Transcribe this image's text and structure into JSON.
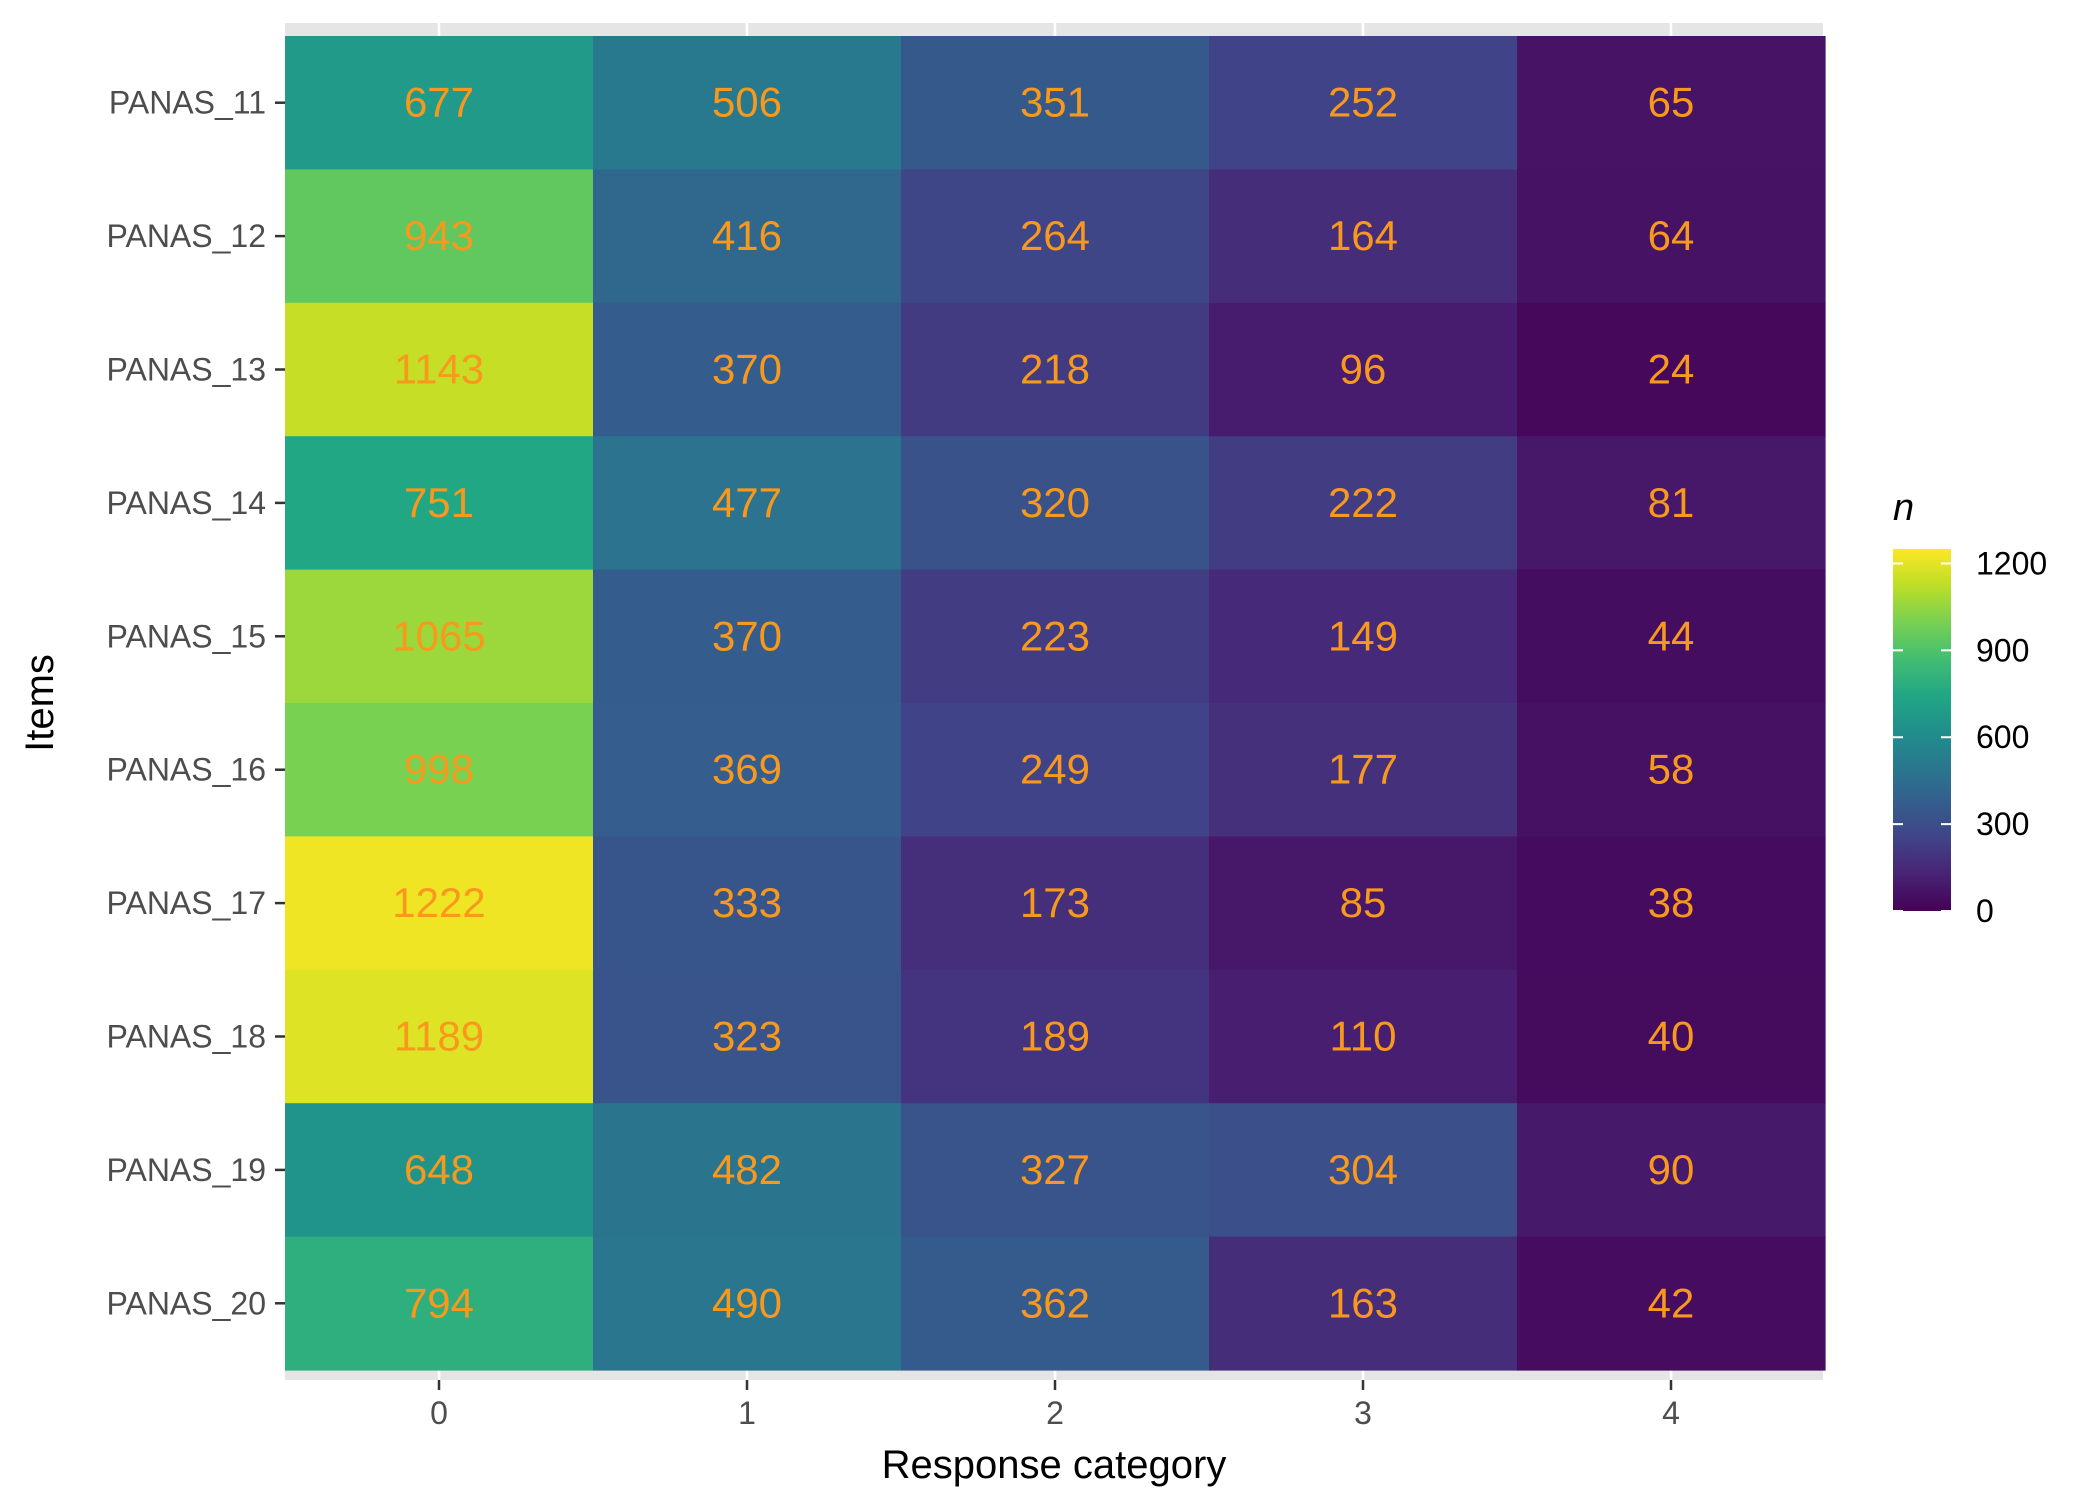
{
  "chart_data": {
    "type": "heatmap",
    "title": "",
    "xlabel": "Response category",
    "ylabel": "Items",
    "x_categories": [
      "0",
      "1",
      "2",
      "3",
      "4"
    ],
    "y_categories": [
      "PANAS_11",
      "PANAS_12",
      "PANAS_13",
      "PANAS_14",
      "PANAS_15",
      "PANAS_16",
      "PANAS_17",
      "PANAS_18",
      "PANAS_19",
      "PANAS_20"
    ],
    "values": [
      [
        677,
        506,
        351,
        252,
        65
      ],
      [
        943,
        416,
        264,
        164,
        64
      ],
      [
        1143,
        370,
        218,
        96,
        24
      ],
      [
        751,
        477,
        320,
        222,
        81
      ],
      [
        1065,
        370,
        223,
        149,
        44
      ],
      [
        998,
        369,
        249,
        177,
        58
      ],
      [
        1222,
        333,
        173,
        85,
        38
      ],
      [
        1189,
        323,
        189,
        110,
        40
      ],
      [
        648,
        482,
        327,
        304,
        90
      ],
      [
        794,
        490,
        362,
        163,
        42
      ]
    ],
    "color_scale": "viridis",
    "color_range": [
      0,
      1250
    ],
    "label_color": "#F8991D",
    "legend": {
      "title": "n",
      "ticks": [
        0,
        300,
        600,
        900,
        1200
      ],
      "position": "right"
    },
    "panel_background": "#E5E5E5",
    "grid": true
  }
}
